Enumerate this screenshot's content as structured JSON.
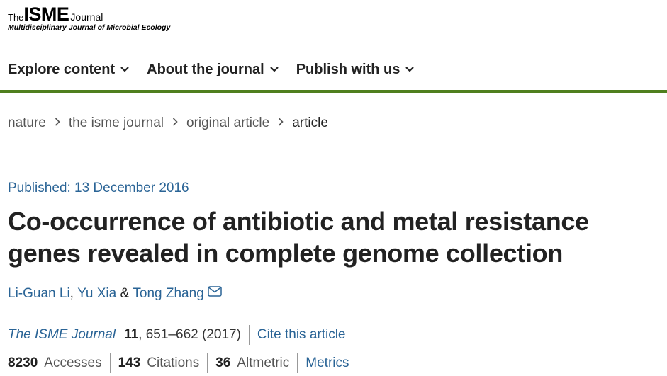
{
  "logo": {
    "the": "The",
    "name": "ISME",
    "journal": "Journal",
    "subtitle": "Multidisciplinary Journal of Microbial Ecology"
  },
  "nav": {
    "items": [
      {
        "label": "Explore content"
      },
      {
        "label": "About the journal"
      },
      {
        "label": "Publish with us"
      }
    ]
  },
  "breadcrumb": [
    "nature",
    "the isme journal",
    "original article",
    "article"
  ],
  "article": {
    "published": "Published: 13 December 2016",
    "title": "Co-occurrence of antibiotic and metal resistance genes revealed in complete genome collection",
    "authors": [
      "Li-Guan Li",
      "Yu Xia",
      "Tong Zhang"
    ],
    "author_sep_1": ", ",
    "author_sep_2": " & ",
    "journal": "The ISME Journal",
    "volume": "11",
    "pages": ", 651–662 (2017)",
    "cite_label": "Cite this article"
  },
  "metrics": {
    "accesses_value": "8230",
    "accesses_label": "Accesses",
    "citations_value": "143",
    "citations_label": "Citations",
    "altmetric_value": "36",
    "altmetric_label": "Altmetric",
    "metrics_link": "Metrics"
  },
  "colors": {
    "link": "#2a6496",
    "nav_border": "#4f7f1e",
    "text": "#222222"
  },
  "icons": {
    "nav_chevron": "chevron-down-icon",
    "crumb_separator": "chevron-right-icon",
    "corresponding_author": "mail-icon"
  }
}
